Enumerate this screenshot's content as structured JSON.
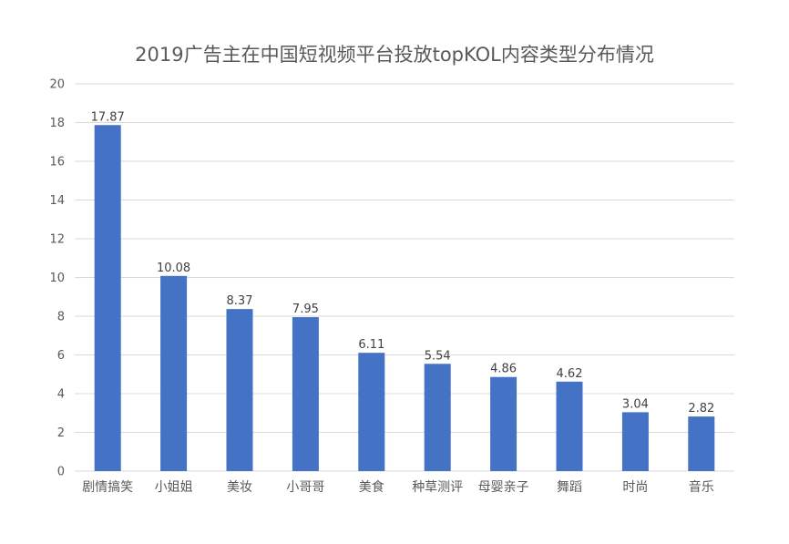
{
  "chart_data": {
    "type": "bar",
    "title": "2019广告主在中国短视频平台投放topKOL内容类型分布情况",
    "categories": [
      "剧情搞笑",
      "小姐姐",
      "美妆",
      "小哥哥",
      "美食",
      "种草测评",
      "母婴亲子",
      "舞蹈",
      "时尚",
      "音乐"
    ],
    "values": [
      17.87,
      10.08,
      8.37,
      7.95,
      6.11,
      5.54,
      4.86,
      4.62,
      3.04,
      2.82
    ],
    "data_labels": [
      "17.87",
      "10.08",
      "8.37",
      "7.95",
      "6.11",
      "5.54",
      "4.86",
      "4.62",
      "3.04",
      "2.82"
    ],
    "yticks": [
      "0",
      "2",
      "4",
      "6",
      "8",
      "10",
      "12",
      "14",
      "16",
      "18",
      "20"
    ],
    "ylim": [
      0,
      20
    ],
    "grid": true,
    "legend": "none",
    "bar_color": "#4472C4",
    "grid_color": "#D9D9D9"
  }
}
